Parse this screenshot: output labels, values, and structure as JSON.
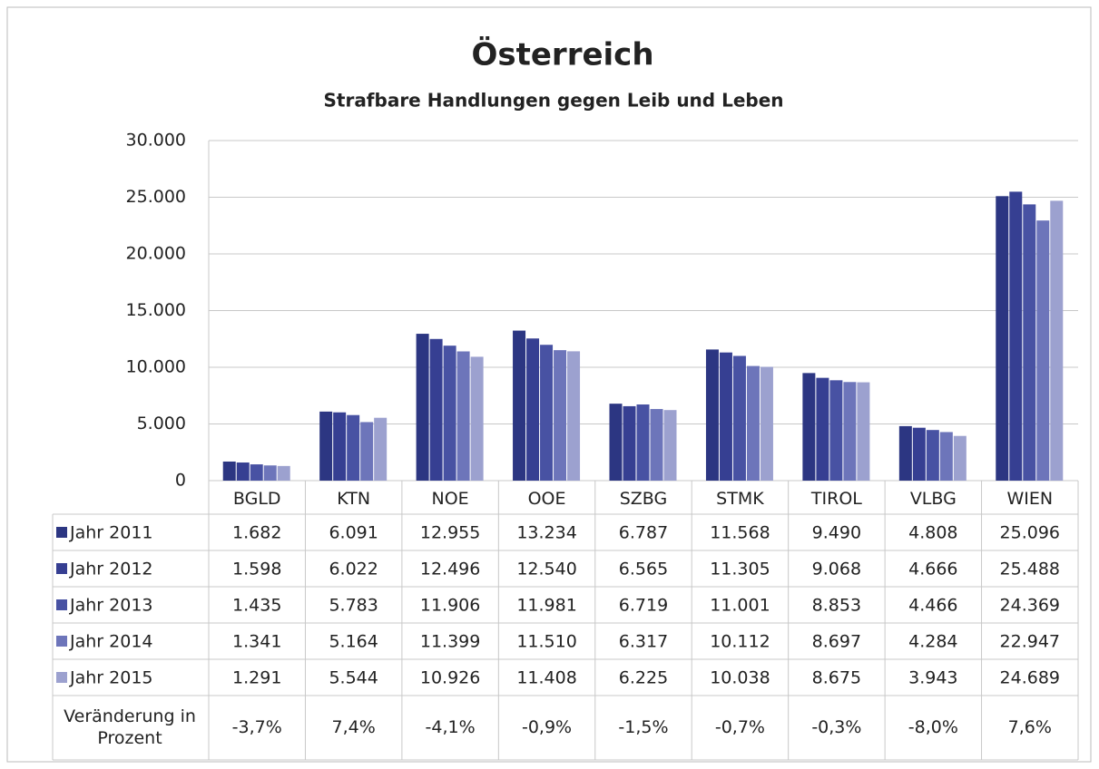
{
  "chart_data": {
    "type": "bar",
    "title": "Österreich",
    "subtitle": "Strafbare Handlungen gegen Leib und Leben",
    "categories": [
      "BGLD",
      "KTN",
      "NOE",
      "OOE",
      "SZBG",
      "STMK",
      "TIROL",
      "VLBG",
      "WIEN"
    ],
    "series": [
      {
        "name": "Jahr 2011",
        "color": "#2c3682",
        "values": [
          1682,
          6091,
          12955,
          13234,
          6787,
          11568,
          9490,
          4808,
          25096
        ],
        "value_labels": [
          "1.682",
          "6.091",
          "12.955",
          "13.234",
          "6.787",
          "11.568",
          "9.490",
          "4.808",
          "25.096"
        ]
      },
      {
        "name": "Jahr 2012",
        "color": "#363f92",
        "values": [
          1598,
          6022,
          12496,
          12540,
          6565,
          11305,
          9068,
          4666,
          25488
        ],
        "value_labels": [
          "1.598",
          "6.022",
          "12.496",
          "12.540",
          "6.565",
          "11.305",
          "9.068",
          "4.666",
          "25.488"
        ]
      },
      {
        "name": "Jahr 2013",
        "color": "#4852a3",
        "values": [
          1435,
          5783,
          11906,
          11981,
          6719,
          11001,
          8853,
          4466,
          24369
        ],
        "value_labels": [
          "1.435",
          "5.783",
          "11.906",
          "11.981",
          "6.719",
          "11.001",
          "8.853",
          "4.466",
          "24.369"
        ]
      },
      {
        "name": "Jahr 2014",
        "color": "#6d75ba",
        "values": [
          1341,
          5164,
          11399,
          11510,
          6317,
          10112,
          8697,
          4284,
          22947
        ],
        "value_labels": [
          "1.341",
          "5.164",
          "11.399",
          "11.510",
          "6.317",
          "10.112",
          "8.697",
          "4.284",
          "22.947"
        ]
      },
      {
        "name": "Jahr 2015",
        "color": "#9ca1cf",
        "values": [
          1291,
          5544,
          10926,
          11408,
          6225,
          10038,
          8675,
          3943,
          24689
        ],
        "value_labels": [
          "1.291",
          "5.544",
          "10.926",
          "11.408",
          "6.225",
          "10.038",
          "8.675",
          "3.943",
          "24.689"
        ]
      }
    ],
    "change": {
      "name": "Veränderung in Prozent",
      "values": [
        -3.7,
        7.4,
        -4.1,
        -0.9,
        -1.5,
        -0.7,
        -0.3,
        -8.0,
        7.6
      ],
      "value_labels": [
        "-3,7%",
        "7,4%",
        "-4,1%",
        "-0,9%",
        "-1,5%",
        "-0,7%",
        "-0,3%",
        "-8,0%",
        "7,6%"
      ]
    },
    "ylim": [
      0,
      30000
    ],
    "yticks": [
      0,
      {
        "value": 5000,
        "label": "5.000"
      },
      {
        "value": 10000,
        "label": "10.000"
      },
      {
        "value": 15000,
        "label": "15.000"
      },
      {
        "value": 20000,
        "label": "20.000"
      },
      {
        "value": 25000,
        "label": "25.000"
      },
      {
        "value": 30000,
        "label": "30.000"
      }
    ],
    "grid": true
  }
}
